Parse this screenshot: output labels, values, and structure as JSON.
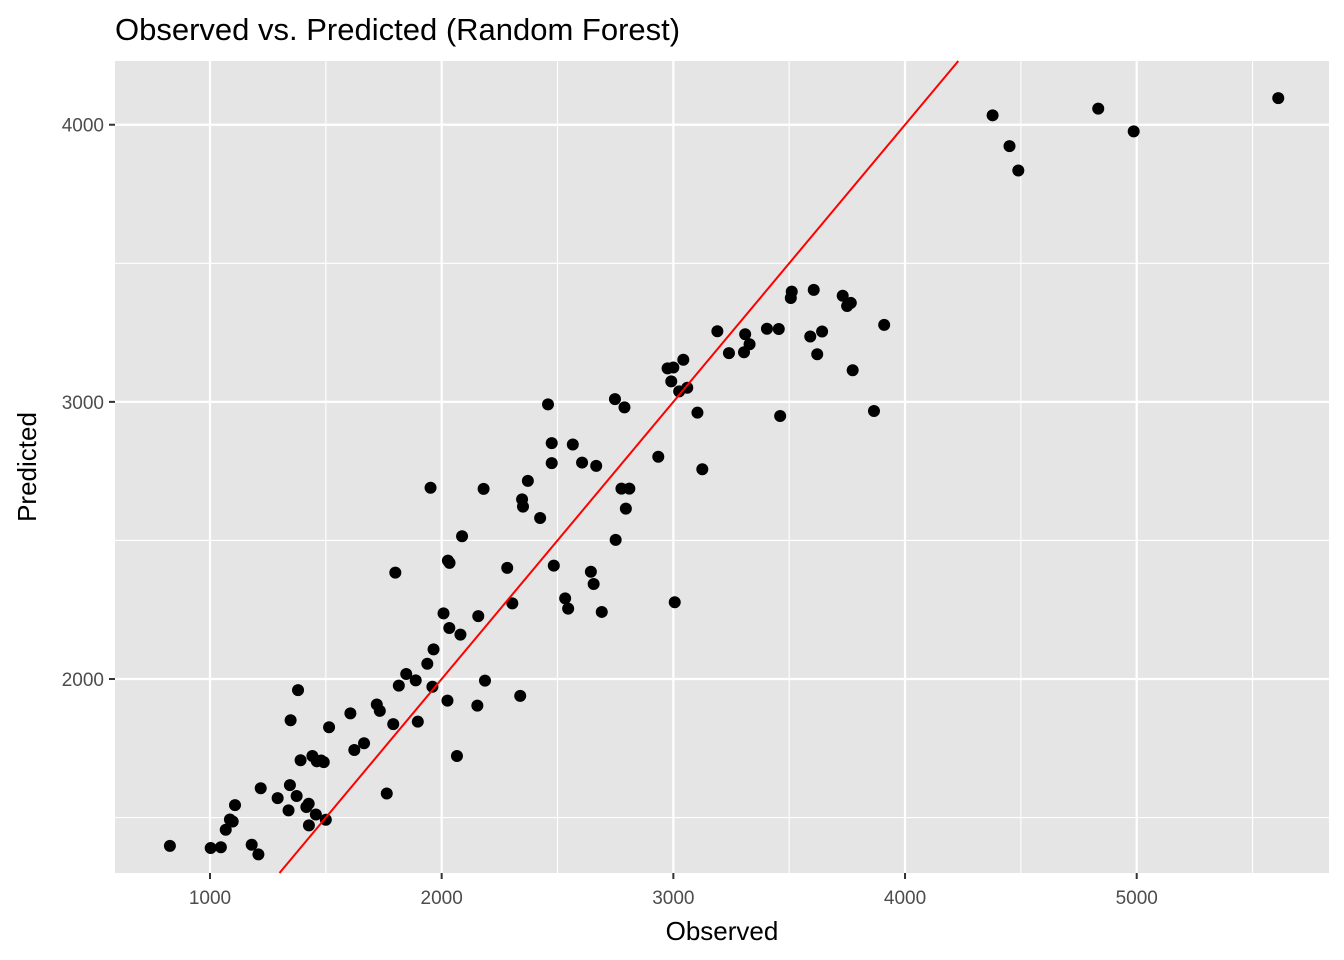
{
  "chart_data": {
    "type": "scatter",
    "title": "Observed vs. Predicted (Random Forest)",
    "xlabel": "Observed",
    "ylabel": "Predicted",
    "xlim": [
      590,
      5830
    ],
    "ylim": [
      1300,
      4230
    ],
    "x_ticks": [
      1000,
      2000,
      3000,
      4000,
      5000
    ],
    "x_tick_labels": [
      "1000",
      "2000",
      "3000",
      "4000",
      "5000"
    ],
    "y_ticks": [
      2000,
      3000,
      4000
    ],
    "y_tick_labels": [
      "2000",
      "3000",
      "4000"
    ],
    "x_minor_gridlines": [
      1500,
      2500,
      3500,
      4500,
      5500
    ],
    "y_minor_gridlines": [
      1500,
      2500,
      3500
    ],
    "grid": true,
    "panel_background": "#e5e5e5",
    "gridline_color": "#ffffff",
    "point_color": "#000000",
    "reference_line": {
      "type": "identity",
      "slope": 1,
      "intercept": 0,
      "color": "#ff0000"
    },
    "points": [
      {
        "x": 827,
        "y": 1398
      },
      {
        "x": 1003,
        "y": 1390
      },
      {
        "x": 1047,
        "y": 1393
      },
      {
        "x": 1068,
        "y": 1456
      },
      {
        "x": 1086,
        "y": 1493
      },
      {
        "x": 1098,
        "y": 1486
      },
      {
        "x": 1108,
        "y": 1545
      },
      {
        "x": 1180,
        "y": 1402
      },
      {
        "x": 1209,
        "y": 1367
      },
      {
        "x": 1219,
        "y": 1606
      },
      {
        "x": 1292,
        "y": 1570
      },
      {
        "x": 1339,
        "y": 1526
      },
      {
        "x": 1345,
        "y": 1617
      },
      {
        "x": 1348,
        "y": 1851
      },
      {
        "x": 1374,
        "y": 1578
      },
      {
        "x": 1380,
        "y": 1960
      },
      {
        "x": 1391,
        "y": 1707
      },
      {
        "x": 1416,
        "y": 1538
      },
      {
        "x": 1426,
        "y": 1550
      },
      {
        "x": 1427,
        "y": 1472
      },
      {
        "x": 1442,
        "y": 1722
      },
      {
        "x": 1457,
        "y": 1511
      },
      {
        "x": 1461,
        "y": 1703
      },
      {
        "x": 1480,
        "y": 1706
      },
      {
        "x": 1491,
        "y": 1700
      },
      {
        "x": 1500,
        "y": 1492
      },
      {
        "x": 1514,
        "y": 1826
      },
      {
        "x": 1606,
        "y": 1876
      },
      {
        "x": 1623,
        "y": 1744
      },
      {
        "x": 1665,
        "y": 1768
      },
      {
        "x": 1720,
        "y": 1908
      },
      {
        "x": 1733,
        "y": 1885
      },
      {
        "x": 1763,
        "y": 1587
      },
      {
        "x": 1791,
        "y": 1837
      },
      {
        "x": 1800,
        "y": 2384
      },
      {
        "x": 1815,
        "y": 1976
      },
      {
        "x": 1847,
        "y": 2018
      },
      {
        "x": 1888,
        "y": 1995
      },
      {
        "x": 1897,
        "y": 1846
      },
      {
        "x": 1938,
        "y": 2055
      },
      {
        "x": 1952,
        "y": 2690
      },
      {
        "x": 1960,
        "y": 1972
      },
      {
        "x": 1965,
        "y": 2107
      },
      {
        "x": 2008,
        "y": 2237
      },
      {
        "x": 2025,
        "y": 1922
      },
      {
        "x": 2027,
        "y": 2427
      },
      {
        "x": 2033,
        "y": 2184
      },
      {
        "x": 2034,
        "y": 2419
      },
      {
        "x": 2066,
        "y": 1722
      },
      {
        "x": 2081,
        "y": 2160
      },
      {
        "x": 2088,
        "y": 2515
      },
      {
        "x": 2154,
        "y": 1904
      },
      {
        "x": 2158,
        "y": 2227
      },
      {
        "x": 2181,
        "y": 2686
      },
      {
        "x": 2187,
        "y": 1994
      },
      {
        "x": 2283,
        "y": 2401
      },
      {
        "x": 2305,
        "y": 2273
      },
      {
        "x": 2339,
        "y": 1939
      },
      {
        "x": 2347,
        "y": 2648
      },
      {
        "x": 2351,
        "y": 2622
      },
      {
        "x": 2372,
        "y": 2715
      },
      {
        "x": 2425,
        "y": 2581
      },
      {
        "x": 2459,
        "y": 2991
      },
      {
        "x": 2475,
        "y": 2851
      },
      {
        "x": 2475,
        "y": 2779
      },
      {
        "x": 2484,
        "y": 2409
      },
      {
        "x": 2533,
        "y": 2291
      },
      {
        "x": 2546,
        "y": 2254
      },
      {
        "x": 2566,
        "y": 2846
      },
      {
        "x": 2606,
        "y": 2781
      },
      {
        "x": 2644,
        "y": 2387
      },
      {
        "x": 2656,
        "y": 2343
      },
      {
        "x": 2667,
        "y": 2769
      },
      {
        "x": 2691,
        "y": 2242
      },
      {
        "x": 2748,
        "y": 3010
      },
      {
        "x": 2751,
        "y": 2502
      },
      {
        "x": 2776,
        "y": 2687
      },
      {
        "x": 2789,
        "y": 2980
      },
      {
        "x": 2795,
        "y": 2615
      },
      {
        "x": 2810,
        "y": 2687
      },
      {
        "x": 2935,
        "y": 2802
      },
      {
        "x": 2975,
        "y": 3121
      },
      {
        "x": 2991,
        "y": 3074
      },
      {
        "x": 3000,
        "y": 3124
      },
      {
        "x": 3006,
        "y": 2277
      },
      {
        "x": 3025,
        "y": 3038
      },
      {
        "x": 3043,
        "y": 3152
      },
      {
        "x": 3060,
        "y": 3051
      },
      {
        "x": 3104,
        "y": 2961
      },
      {
        "x": 3125,
        "y": 2757
      },
      {
        "x": 3190,
        "y": 3255
      },
      {
        "x": 3240,
        "y": 3176
      },
      {
        "x": 3305,
        "y": 3179
      },
      {
        "x": 3310,
        "y": 3244
      },
      {
        "x": 3329,
        "y": 3208
      },
      {
        "x": 3404,
        "y": 3264
      },
      {
        "x": 3455,
        "y": 3263
      },
      {
        "x": 3461,
        "y": 2949
      },
      {
        "x": 3507,
        "y": 3375
      },
      {
        "x": 3511,
        "y": 3398
      },
      {
        "x": 3591,
        "y": 3236
      },
      {
        "x": 3606,
        "y": 3404
      },
      {
        "x": 3621,
        "y": 3172
      },
      {
        "x": 3642,
        "y": 3254
      },
      {
        "x": 3731,
        "y": 3383
      },
      {
        "x": 3750,
        "y": 3346
      },
      {
        "x": 3766,
        "y": 3357
      },
      {
        "x": 3774,
        "y": 3114
      },
      {
        "x": 3866,
        "y": 2967
      },
      {
        "x": 3910,
        "y": 3278
      },
      {
        "x": 4378,
        "y": 4034
      },
      {
        "x": 4451,
        "y": 3923
      },
      {
        "x": 4489,
        "y": 3835
      },
      {
        "x": 4834,
        "y": 4058
      },
      {
        "x": 4987,
        "y": 3976
      },
      {
        "x": 5611,
        "y": 4096
      }
    ]
  }
}
